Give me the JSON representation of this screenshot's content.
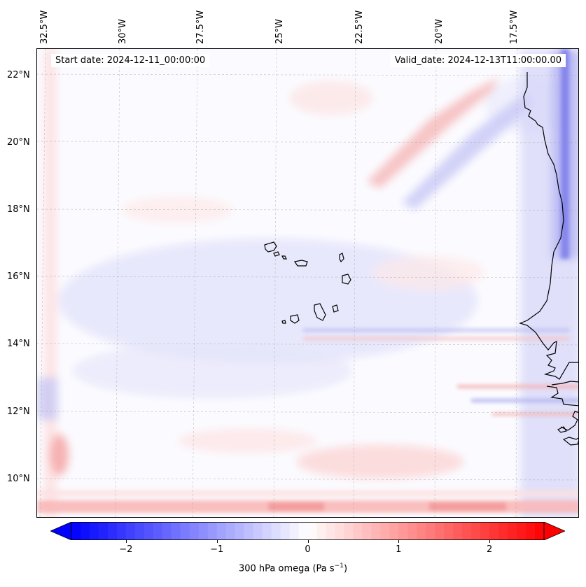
{
  "map": {
    "start_date_label": "Start date: 2024-12-11_00:00:00",
    "valid_date_label": "Valid_date: 2024-12-13T11:00:00.00",
    "lon_labels": [
      "32.5°W",
      "30°W",
      "27.5°W",
      "25°W",
      "22.5°W",
      "20°W",
      "17.5°W"
    ],
    "lat_labels": [
      "22°N",
      "20°N",
      "18°N",
      "16°N",
      "14°N",
      "12°N",
      "10°N"
    ],
    "extent": {
      "lon_min": -32.8,
      "lon_max": -15.8,
      "lat_min": 8.8,
      "lat_max": 22.8
    },
    "gridlines": true,
    "coastline_color": "#000000",
    "field": "300 hPa omega"
  },
  "colorbar": {
    "label_prefix": "300 hPa omega (Pa s",
    "label_exp": "−1",
    "label_suffix": ")",
    "ticks": [
      "−2",
      "−1",
      "0",
      "1",
      "2"
    ],
    "tick_values": [
      -2,
      -1,
      0,
      1,
      2
    ],
    "range": [
      -2.6,
      2.6
    ],
    "colormap": "bwr",
    "low_color": "#0000ff",
    "mid_color": "#ffffff",
    "high_color": "#ff0000",
    "extend": "both"
  }
}
